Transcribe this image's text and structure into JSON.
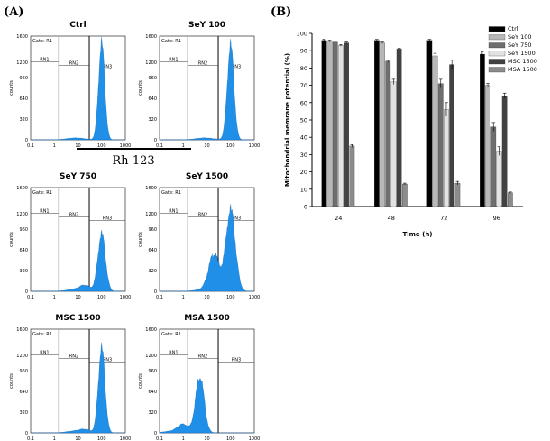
{
  "panels": {
    "a_label": "(A)",
    "b_label": "(B)"
  },
  "histograms": {
    "gate_label": "Gate: R1",
    "ylabel": "counts",
    "marker_labels": [
      "RN1",
      "RN2",
      "RN3"
    ],
    "yticks": [
      "0",
      "320",
      "640",
      "960",
      "1200",
      "1600"
    ],
    "xticks": [
      "0.1",
      "1",
      "10",
      "100",
      "1000"
    ],
    "fill_color": "#1f8fe8",
    "plots": [
      {
        "title": "Ctrl",
        "peak_x": 100,
        "peak_y": 1480,
        "width": 0.13,
        "shoulder": 0
      },
      {
        "title": "SeY 100",
        "peak_x": 100,
        "peak_y": 1450,
        "width": 0.14,
        "shoulder": 0
      },
      {
        "title": "SeY 750",
        "peak_x": 100,
        "peak_y": 880,
        "width": 0.16,
        "shoulder": 80
      },
      {
        "title": "SeY 1500",
        "peak_x": 100,
        "peak_y": 1250,
        "width": 0.2,
        "shoulder": 560
      },
      {
        "title": "MSC 1500",
        "peak_x": 100,
        "peak_y": 1300,
        "width": 0.14,
        "shoulder": 40
      },
      {
        "title": "MSA 1500",
        "peak_x": 5,
        "peak_y": 880,
        "width": 0.18,
        "shoulder": 120
      }
    ]
  },
  "flow_axis_label": "Rh-123",
  "chart_data": {
    "type": "bar",
    "xlabel": "Time (h)",
    "ylabel": "Mitochondrial memrane potential (%)",
    "categories": [
      "24",
      "48",
      "72",
      "96"
    ],
    "ylim": [
      0,
      100
    ],
    "yticks": [
      0,
      10,
      20,
      30,
      40,
      50,
      60,
      70,
      80,
      90,
      100
    ],
    "legend_position": "top-right",
    "series": [
      {
        "name": "Ctrl",
        "color": "#000000",
        "values": [
          96,
          96,
          96,
          88
        ],
        "errors": [
          0.5,
          0.5,
          0.5,
          1.5
        ]
      },
      {
        "name": "SeY 100",
        "color": "#b8b8b8",
        "values": [
          95.5,
          94.5,
          87,
          70
        ],
        "errors": [
          0.5,
          0.5,
          1.5,
          1
        ]
      },
      {
        "name": "SeY 750",
        "color": "#6e6e6e",
        "values": [
          95,
          84,
          71,
          46
        ],
        "errors": [
          0.5,
          0.5,
          2.5,
          2.5
        ]
      },
      {
        "name": "SeY 1500",
        "color": "#e2e2e2",
        "values": [
          93,
          72,
          56,
          32
        ],
        "errors": [
          0.5,
          1.5,
          4,
          2.5
        ]
      },
      {
        "name": "MSC 1500",
        "color": "#424242",
        "values": [
          94.5,
          91,
          82,
          64
        ],
        "errors": [
          0.5,
          0.5,
          2.5,
          1.5
        ]
      },
      {
        "name": "MSA 1500",
        "color": "#8c8c8c",
        "values": [
          35,
          13,
          13.5,
          8
        ],
        "errors": [
          0.8,
          0.5,
          1,
          0.4
        ]
      }
    ]
  }
}
